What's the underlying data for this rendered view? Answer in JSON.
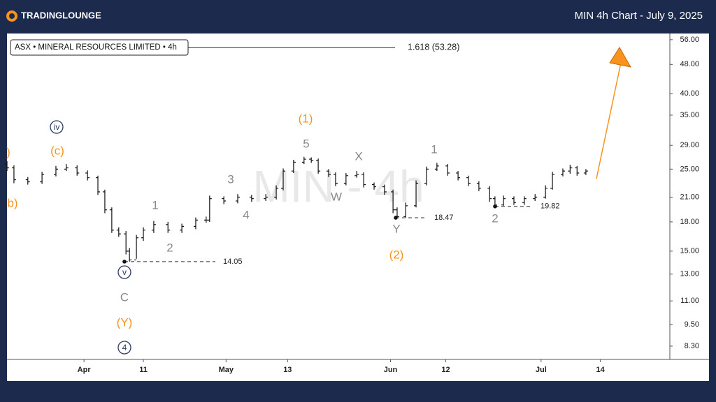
{
  "header": {
    "logo": "TRADINGLOUNGE",
    "title": "MIN 4h Chart - July 9, 2025"
  },
  "chart_data": {
    "type": "ohlc",
    "legend": "ASX • MINERAL RESOURCES LIMITED • 4h",
    "watermark": "MIN - 4h",
    "log_scale": true,
    "grid": false,
    "color": "#111111",
    "x": [
      0,
      2.2,
      6.6,
      11.1,
      15.5,
      18.8,
      22.2,
      25.5,
      28.8,
      31,
      33.2,
      35.4,
      37.7,
      38.8,
      41,
      43.2,
      46.5,
      51,
      55.4,
      59.8,
      63.1,
      64.2,
      68.7,
      73.1,
      77.5,
      82,
      85.3,
      87.5,
      90.8,
      94.1,
      96.4,
      98.6,
      101.9,
      104.1,
      107.4,
      110.8,
      113,
      116.3,
      119.6,
      122.3,
      123.6,
      126.3,
      129.6,
      132.9,
      136.2,
      139.6,
      142.9,
      146.2,
      149.5,
      152.9,
      154.6,
      157.3,
      160.6,
      163.9,
      167.3,
      170.6,
      172.8,
      176.1,
      178.4,
      180.6,
      183.4
    ],
    "open": [
      25.8,
      25.2,
      23.4,
      23.1,
      24.2,
      25.0,
      25.2,
      24.4,
      23.7,
      21.7,
      19.4,
      17.1,
      16.7,
      15.0,
      14.2,
      16.3,
      17.1,
      17.7,
      17.1,
      17.5,
      18.2,
      18.2,
      20.8,
      20.5,
      21.0,
      20.8,
      21.0,
      22.2,
      24.7,
      26.1,
      26.6,
      26.4,
      24.7,
      24.2,
      22.9,
      24.0,
      24.2,
      22.7,
      22.4,
      21.7,
      19.4,
      18.6,
      19.9,
      22.9,
      25.0,
      25.5,
      24.4,
      23.7,
      22.9,
      22.2,
      20.8,
      20.0,
      20.8,
      20.3,
      20.8,
      21.0,
      22.2,
      24.2,
      24.7,
      25.2,
      24.4
    ],
    "high": [
      26.3,
      25.6,
      23.8,
      24.6,
      25.5,
      25.8,
      25.6,
      24.8,
      24.0,
      22.0,
      19.7,
      17.4,
      17.0,
      15.3,
      16.6,
      17.4,
      18.1,
      18.0,
      17.8,
      18.5,
      18.6,
      21.2,
      21.1,
      21.4,
      21.3,
      21.4,
      22.6,
      25.1,
      26.5,
      27.0,
      26.9,
      26.7,
      25.0,
      24.5,
      24.4,
      24.7,
      24.5,
      23.0,
      22.7,
      22.0,
      19.7,
      20.3,
      23.3,
      25.4,
      26.0,
      25.8,
      24.7,
      24.0,
      23.2,
      22.5,
      21.1,
      21.2,
      21.1,
      21.1,
      21.4,
      22.6,
      24.6,
      25.1,
      25.7,
      25.5,
      25.0
    ],
    "low": [
      24.7,
      22.9,
      22.7,
      22.8,
      23.9,
      24.7,
      24.0,
      23.3,
      21.3,
      19.0,
      16.8,
      16.4,
      14.7,
      14.05,
      14.3,
      16.0,
      16.8,
      16.8,
      16.8,
      17.2,
      17.9,
      18.0,
      20.1,
      20.2,
      20.4,
      20.5,
      20.7,
      21.9,
      24.4,
      25.8,
      26.0,
      24.3,
      23.8,
      22.5,
      22.6,
      23.7,
      22.3,
      22.0,
      21.3,
      19.0,
      18.47,
      18.5,
      19.7,
      22.6,
      24.7,
      24.0,
      23.3,
      22.5,
      21.8,
      20.4,
      19.82,
      19.9,
      20.0,
      20.0,
      20.5,
      20.8,
      22.0,
      23.9,
      24.3,
      24.0,
      24.1
    ],
    "close": [
      25.2,
      23.4,
      23.1,
      24.2,
      25.0,
      25.2,
      24.4,
      23.7,
      21.7,
      19.4,
      17.1,
      16.7,
      15.0,
      14.2,
      16.3,
      17.1,
      17.7,
      17.1,
      17.5,
      18.2,
      18.2,
      20.8,
      20.5,
      21.0,
      20.8,
      21.0,
      22.2,
      24.7,
      26.1,
      26.6,
      26.4,
      24.7,
      24.2,
      22.9,
      24.0,
      24.2,
      22.7,
      22.4,
      21.7,
      19.4,
      18.6,
      19.9,
      22.9,
      25.0,
      25.5,
      24.4,
      23.7,
      22.9,
      22.2,
      20.8,
      20.0,
      20.8,
      20.3,
      20.8,
      21.0,
      22.2,
      24.2,
      24.7,
      25.2,
      24.4,
      24.7
    ],
    "xlim": [
      0,
      210
    ],
    "xticks": [
      {
        "value": 24.4,
        "label": "Apr"
      },
      {
        "value": 43.2,
        "label": "11"
      },
      {
        "value": 69.4,
        "label": "May"
      },
      {
        "value": 88.9,
        "label": "13"
      },
      {
        "value": 121.5,
        "label": "Jun"
      },
      {
        "value": 139,
        "label": "12"
      },
      {
        "value": 169.2,
        "label": "Jul"
      },
      {
        "value": 188,
        "label": "14"
      }
    ],
    "ylim": [
      7.64,
      58.2
    ],
    "yticks": [
      {
        "value": 56,
        "label": "56.00"
      },
      {
        "value": 48,
        "label": "48.00"
      },
      {
        "value": 40,
        "label": "40.00"
      },
      {
        "value": 35,
        "label": "35.00"
      },
      {
        "value": 29,
        "label": "29.00"
      },
      {
        "value": 25,
        "label": "25.00"
      },
      {
        "value": 21,
        "label": "21.00"
      },
      {
        "value": 18,
        "label": "18.00"
      },
      {
        "value": 15,
        "label": "15.00"
      },
      {
        "value": 13,
        "label": "13.00"
      },
      {
        "value": 11,
        "label": "11.00"
      },
      {
        "value": 9.5,
        "label": "9.50"
      },
      {
        "value": 8.3,
        "label": "8.30"
      }
    ],
    "levels": [
      14.05,
      18.47,
      19.82
    ],
    "target": {
      "value": 53.28,
      "label": "1.618 (53.28)"
    },
    "annotations": [
      {
        "text": ")",
        "color": "#f7931e"
      },
      {
        "text": "(c)",
        "color": "#f7931e"
      },
      {
        "text": "iv",
        "color": "#2b3a67",
        "style": "circled"
      },
      {
        "text": "b)",
        "color": "#f7931e"
      },
      {
        "text": "1",
        "color": "#8a8a8a"
      },
      {
        "text": "2",
        "color": "#8a8a8a"
      },
      {
        "text": "3",
        "color": "#8a8a8a"
      },
      {
        "text": "4",
        "color": "#8a8a8a"
      },
      {
        "text": "v",
        "color": "#2b3a67",
        "style": "circled"
      },
      {
        "text": "C",
        "color": "#8a8a8a"
      },
      {
        "text": "(Y)",
        "color": "#f7931e"
      },
      {
        "text": "4",
        "color": "#2b3a67",
        "style": "circled"
      },
      {
        "text": "(1)",
        "color": "#f7931e"
      },
      {
        "text": "5",
        "color": "#8a8a8a"
      },
      {
        "text": "X",
        "color": "#8a8a8a"
      },
      {
        "text": "W",
        "color": "#8a8a8a"
      },
      {
        "text": "1",
        "color": "#8a8a8a"
      },
      {
        "text": "Y",
        "color": "#8a8a8a"
      },
      {
        "text": "(2)",
        "color": "#f7931e"
      },
      {
        "text": "2",
        "color": "#8a8a8a"
      }
    ]
  }
}
